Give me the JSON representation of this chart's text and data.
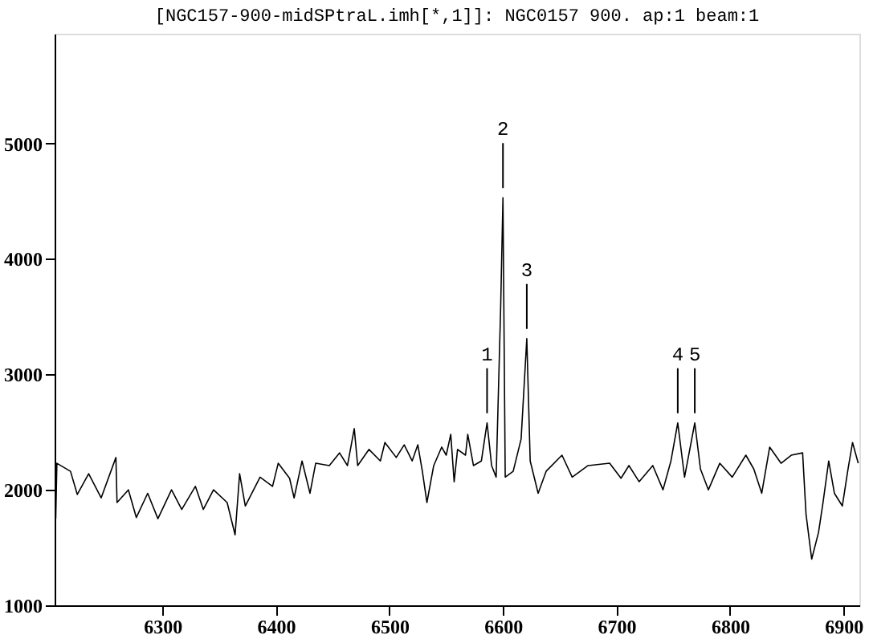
{
  "chart_data": {
    "type": "line",
    "title": "[NGC157-900-midSPtraL.imh[*,1]]: NGC0157 900. ap:1 beam:1",
    "x": [
      6206,
      6207,
      6219,
      6225,
      6235,
      6246,
      6259,
      6260,
      6270,
      6277,
      6287,
      6296,
      6308,
      6317,
      6329,
      6336,
      6345,
      6357,
      6364,
      6368,
      6373,
      6386,
      6397,
      6402,
      6412,
      6416,
      6423,
      6430,
      6435,
      6447,
      6456,
      6463,
      6469,
      6472,
      6482,
      6492,
      6496,
      6506,
      6513,
      6520,
      6525,
      6529,
      6533,
      6539,
      6546,
      6550,
      6554,
      6557,
      6560,
      6567,
      6569,
      6574,
      6581,
      6586,
      6590,
      6594,
      6598,
      6600,
      6602,
      6609,
      6616,
      6621,
      6624,
      6631,
      6638,
      6652,
      6661,
      6675,
      6694,
      6704,
      6711,
      6720,
      6732,
      6741,
      6748,
      6754,
      6760,
      6769,
      6774,
      6781,
      6791,
      6802,
      6814,
      6821,
      6828,
      6835,
      6845,
      6854,
      6864,
      6867,
      6872,
      6878,
      6882,
      6887,
      6892,
      6899,
      6904,
      6908,
      6913
    ],
    "series": [
      {
        "color": "#000000",
        "values": [
          1750,
          2230,
          2160,
          1960,
          2140,
          1930,
          2280,
          1890,
          2000,
          1760,
          1970,
          1750,
          2000,
          1830,
          2030,
          1830,
          2000,
          1890,
          1610,
          2140,
          1860,
          2110,
          2030,
          2230,
          2100,
          1930,
          2250,
          1970,
          2230,
          2210,
          2320,
          2210,
          2530,
          2210,
          2350,
          2250,
          2410,
          2280,
          2390,
          2250,
          2390,
          2160,
          1890,
          2210,
          2370,
          2300,
          2480,
          2070,
          2350,
          2300,
          2480,
          2210,
          2250,
          2580,
          2210,
          2110,
          3590,
          4530,
          2110,
          2160,
          2440,
          3310,
          2250,
          1970,
          2160,
          2300,
          2110,
          2210,
          2230,
          2100,
          2210,
          2070,
          2210,
          2000,
          2250,
          2580,
          2110,
          2580,
          2180,
          2000,
          2230,
          2110,
          2300,
          2180,
          1970,
          2370,
          2230,
          2300,
          2320,
          1790,
          1400,
          1630,
          1890,
          2250,
          1970,
          1860,
          2180,
          2410,
          2230
        ]
      }
    ],
    "xlim": [
      6205,
      6914
    ],
    "ylim": [
      1000,
      5950
    ],
    "xticks": [
      6300,
      6400,
      6500,
      6600,
      6700,
      6800,
      6900
    ],
    "yticks": [
      1000,
      2000,
      3000,
      4000,
      5000
    ],
    "grid": false,
    "legend": false,
    "annotations": [
      {
        "text": "1",
        "x": 6586,
        "y": 2580
      },
      {
        "text": "2",
        "x": 6600,
        "y": 4530
      },
      {
        "text": "3",
        "x": 6621,
        "y": 3310
      },
      {
        "text": "4",
        "x": 6754,
        "y": 2580
      },
      {
        "text": "5",
        "x": 6769,
        "y": 2580
      }
    ]
  }
}
